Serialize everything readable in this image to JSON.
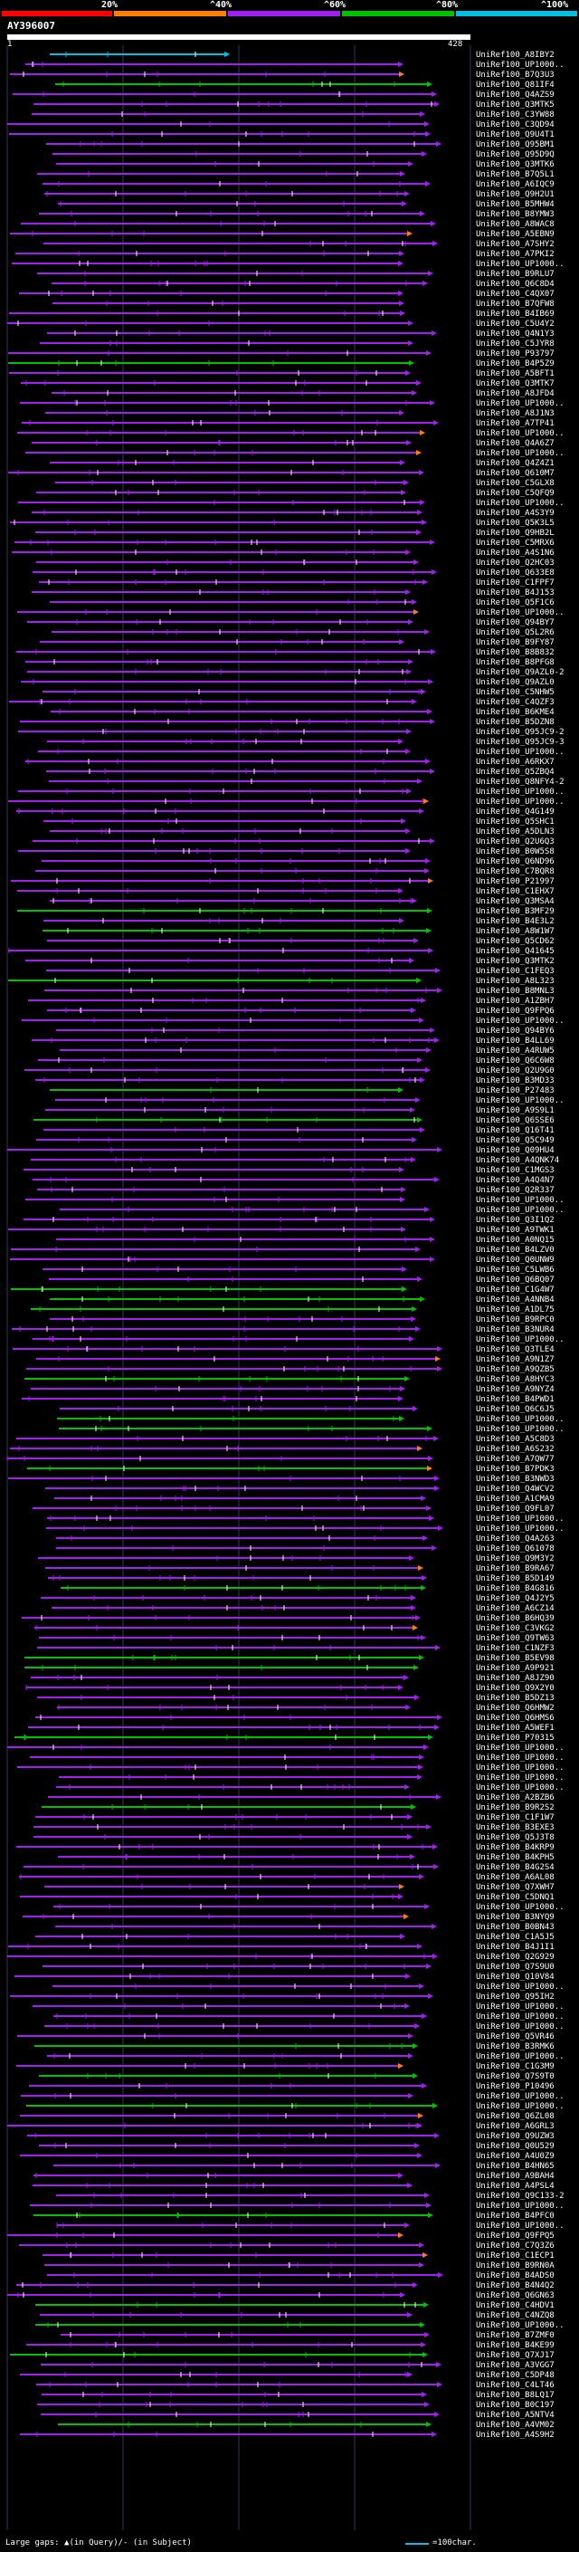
{
  "header": {
    "percent_labels": [
      "20%",
      "^40%",
      "^60%",
      "^80%",
      "^100%"
    ],
    "scale_colors": [
      "#ff0000",
      "#ff8000",
      "#a020f0",
      "#00c000",
      "#00c0e0"
    ],
    "query_id": "AY396007",
    "axis_start": "1",
    "axis_end": "428"
  },
  "footer": {
    "text": "Large gaps: ▲(in Query)/- (in Subject)",
    "scale_text": "=100char."
  },
  "hits": [
    "UniRef100_A8IBY2",
    "UniRef100_UP1000..",
    "UniRef100_B7Q3U3",
    "UniRef100_Q81IF4",
    "UniRef100_Q4AZS9",
    "UniRef100_Q3MTK5",
    "UniRef100_C3YW88",
    "UniRef100_C3QD94",
    "UniRef100_Q9U4T1",
    "UniRef100_Q95BM1",
    "UniRef100_Q95D9Q",
    "UniRef100_Q3MTK6",
    "UniRef100_B7Q5L1",
    "UniRef100_A6IQC9",
    "UniRef100_Q9H2U1",
    "UniRef100_B5MHW4",
    "UniRef100_B8YMW3",
    "UniRef100_A8WAC8",
    "UniRef100_A5EBN9",
    "UniRef100_A7SHY2",
    "UniRef100_A7PKI2",
    "UniRef100_UP1000..",
    "UniRef100_B9RLU7",
    "UniRef100_Q6C8D4",
    "UniRef100_C4QX07",
    "UniRef100_B7QFW8",
    "UniRef100_B4IB69",
    "UniRef100_C5U4Y2",
    "UniRef100_Q4N1Y3",
    "UniRef100_C5JYR8",
    "UniRef100_P93797",
    "UniRef100_B4P5Z9",
    "UniRef100_A5BFT1",
    "UniRef100_Q3MTK7",
    "UniRef100_A8JFD4",
    "UniRef100_UP1000..",
    "UniRef100_A8J1N3",
    "UniRef100_A7TP41",
    "UniRef100_UP1000..",
    "UniRef100_Q4A6Z7",
    "UniRef100_UP1000..",
    "UniRef100_Q4Z4Z1",
    "UniRef100_Q610M7",
    "UniRef100_C5GLX8",
    "UniRef100_C5QFQ9",
    "UniRef100_UP1000..",
    "UniRef100_A4S3Y9",
    "UniRef100_Q5K3L5",
    "UniRef100_Q9HB2L",
    "UniRef100_C5MRX6",
    "UniRef100_A4S1N6",
    "UniRef100_Q2HC03",
    "UniRef100_Q633E8",
    "UniRef100_C1FPF7",
    "UniRef100_B4J153",
    "UniRef100_Q5F1C6",
    "UniRef100_UP1000..",
    "UniRef100_Q94BY7",
    "UniRef100_Q5L2R6",
    "UniRef100_B9FY87",
    "UniRef100_B8B832",
    "UniRef100_B8PFG8",
    "UniRef100_Q9AZL0-2",
    "UniRef100_Q9AZL0",
    "UniRef100_C5NHW5",
    "UniRef100_C4QZF3",
    "UniRef100_B6KME4",
    "UniRef100_B5DZN8",
    "UniRef100_Q95JC9-2",
    "UniRef100_Q95JC9-3",
    "UniRef100_UP1000..",
    "UniRef100_A6RKX7",
    "UniRef100_Q5ZBQ4",
    "UniRef100_Q8NFY4-2",
    "UniRef100_UP1000..",
    "UniRef100_UP1000..",
    "UniRef100_Q4G149",
    "UniRef100_Q5SHC1",
    "UniRef100_A5DLN3",
    "UniRef100_Q2U6Q3",
    "UniRef100_B0W5S8",
    "UniRef100_Q6ND96",
    "UniRef100_C7BQR8",
    "UniRef100_P21997",
    "UniRef100_C1EHX7",
    "UniRef100_Q3MSA4",
    "UniRef100_B3MF29",
    "UniRef100_B4E3L2",
    "UniRef100_A8W1W7",
    "UniRef100_Q5CD62",
    "UniRef100_Q41645",
    "UniRef100_Q3MTK2",
    "UniRef100_C1FEQ3",
    "UniRef100_A8L323",
    "UniRef100_B8MNL3",
    "UniRef100_A1ZBH7",
    "UniRef100_Q9FPQ6",
    "UniRef100_UP1000..",
    "UniRef100_Q94BY6",
    "UniRef100_B4LL69",
    "UniRef100_A4RUW5",
    "UniRef100_Q6C6W8",
    "UniRef100_Q2U9G0",
    "UniRef100_B3MD33",
    "UniRef100_P27483",
    "UniRef100_UP1000..",
    "UniRef100_A9S9L1",
    "UniRef100_Q6SSE6",
    "UniRef100_Q16T41",
    "UniRef100_Q5C949",
    "UniRef100_Q09HU4",
    "UniRef100_A4QNK74",
    "UniRef100_C1MGS3",
    "UniRef100_A4Q4N7",
    "UniRef100_Q2R337",
    "UniRef100_UP1000..",
    "UniRef100_UP1000..",
    "UniRef100_Q3I1Q2",
    "UniRef100_A9TWK1",
    "UniRef100_A0NQ15",
    "UniRef100_B4LZV0",
    "UniRef100_Q0UNW9",
    "UniRef100_C5LWB6",
    "UniRef100_Q6BQ07",
    "UniRef100_C1G4W7",
    "UniRef100_A4NNB4",
    "UniRef100_A1DL75",
    "UniRef100_B9RPC0",
    "UniRef100_B3NUR4",
    "UniRef100_UP1000..",
    "UniRef100_Q3TLE4",
    "UniRef100_A9N1Z7",
    "UniRef100_A9QZB5",
    "UniRef100_A8HYC3",
    "UniRef100_A9NYZ4",
    "UniRef100_B4PWD1",
    "UniRef100_Q6C6J5",
    "UniRef100_UP1000..",
    "UniRef100_UP1000..",
    "UniRef100_A5C8D3",
    "UniRef100_A6S232",
    "UniRef100_A7QW77",
    "UniRef100_B7PDK3",
    "UniRef100_B3NWD3",
    "UniRef100_Q4WCV2",
    "UniRef100_A1CMA9",
    "UniRef100_Q9FL07",
    "UniRef100_UP1000..",
    "UniRef100_UP1000..",
    "UniRef100_Q4A263",
    "UniRef100_Q61078",
    "UniRef100_Q9M3Y2",
    "UniRef100_B9RA67",
    "UniRef100_B5D149",
    "UniRef100_B4G816",
    "UniRef100_Q4J2Y5",
    "UniRef100_A6CZ14",
    "UniRef100_B6HQ39",
    "UniRef100_C3VKG2",
    "UniRef100_Q9TW63",
    "UniRef100_C1NZF3",
    "UniRef100_B5EV98",
    "UniRef100_A9P921",
    "UniRef100_A8JZ90",
    "UniRef100_Q9X2Y0",
    "UniRef100_B5DZ13",
    "UniRef100_Q6HMW2",
    "UniRef100_Q6HMS6",
    "UniRef100_A5WEF1",
    "UniRef100_P70315",
    "UniRef100_UP1000..",
    "UniRef100_UP1000..",
    "UniRef100_UP1000..",
    "UniRef100_UP1000..",
    "UniRef100_UP1000..",
    "UniRef100_A2BZB6",
    "UniRef100_B9R2S2",
    "UniRef100_C1F1W7",
    "UniRef100_B3EXE3",
    "UniRef100_Q5J3T8",
    "UniRef100_B4KRP9",
    "UniRef100_B4KPH5",
    "UniRef100_B4G2S4",
    "UniRef100_A6AL08",
    "UniRef100_Q7XWH7",
    "UniRef100_C5DNQ1",
    "UniRef100_UP1000..",
    "UniRef100_B3NYQ9",
    "UniRef100_B0BN43",
    "UniRef100_C1A5J5",
    "UniRef100_B4J1I1",
    "UniRef100_Q2G929",
    "UniRef100_Q7S9U0",
    "UniRef100_Q10V84",
    "UniRef100_UP1000..",
    "UniRef100_Q95IH2",
    "UniRef100_UP1000..",
    "UniRef100_UP1000..",
    "UniRef100_UP1000..",
    "UniRef100_Q5VR46",
    "UniRef100_B3RMK6",
    "UniRef100_UP1000..",
    "UniRef100_C1G3M9",
    "UniRef100_Q7S9T0",
    "UniRef100_P10496",
    "UniRef100_UP1000..",
    "UniRef100_UP1000..",
    "UniRef100_Q6ZL08",
    "UniRef100_A6GRL3",
    "UniRef100_Q9UZW3",
    "UniRef100_Q0U529",
    "UniRef100_A4U0Z9",
    "UniRef100_B4HN65",
    "UniRef100_A9BAH4",
    "UniRef100_A4PSL4",
    "UniRef100_Q9C133-2",
    "UniRef100_UP1000..",
    "UniRef100_B4PFC0",
    "UniRef100_UP1000..",
    "UniRef100_Q9FPQ5",
    "UniRef100_C7Q3Z6",
    "UniRef100_C1ECP1",
    "UniRef100_B9RN0A",
    "UniRef100_B4ADS0",
    "UniRef100_B4N4Q2",
    "UniRef100_Q6GN63",
    "UniRef100_C4HDV1",
    "UniRef100_C4NZQ8",
    "UniRef100_UP1000..",
    "UniRef100_B7ZMF0",
    "UniRef100_B4KE99",
    "UniRef100_Q7XJ17",
    "UniRef100_A3VGG7",
    "UniRef100_C5DP48",
    "UniRef100_C4LT46",
    "UniRef100_B8LQ17",
    "UniRef100_B0C197",
    "UniRef100_A5NTV4",
    "UniRef100_A4VM02",
    "UniRef100_A4S9H2"
  ]
}
